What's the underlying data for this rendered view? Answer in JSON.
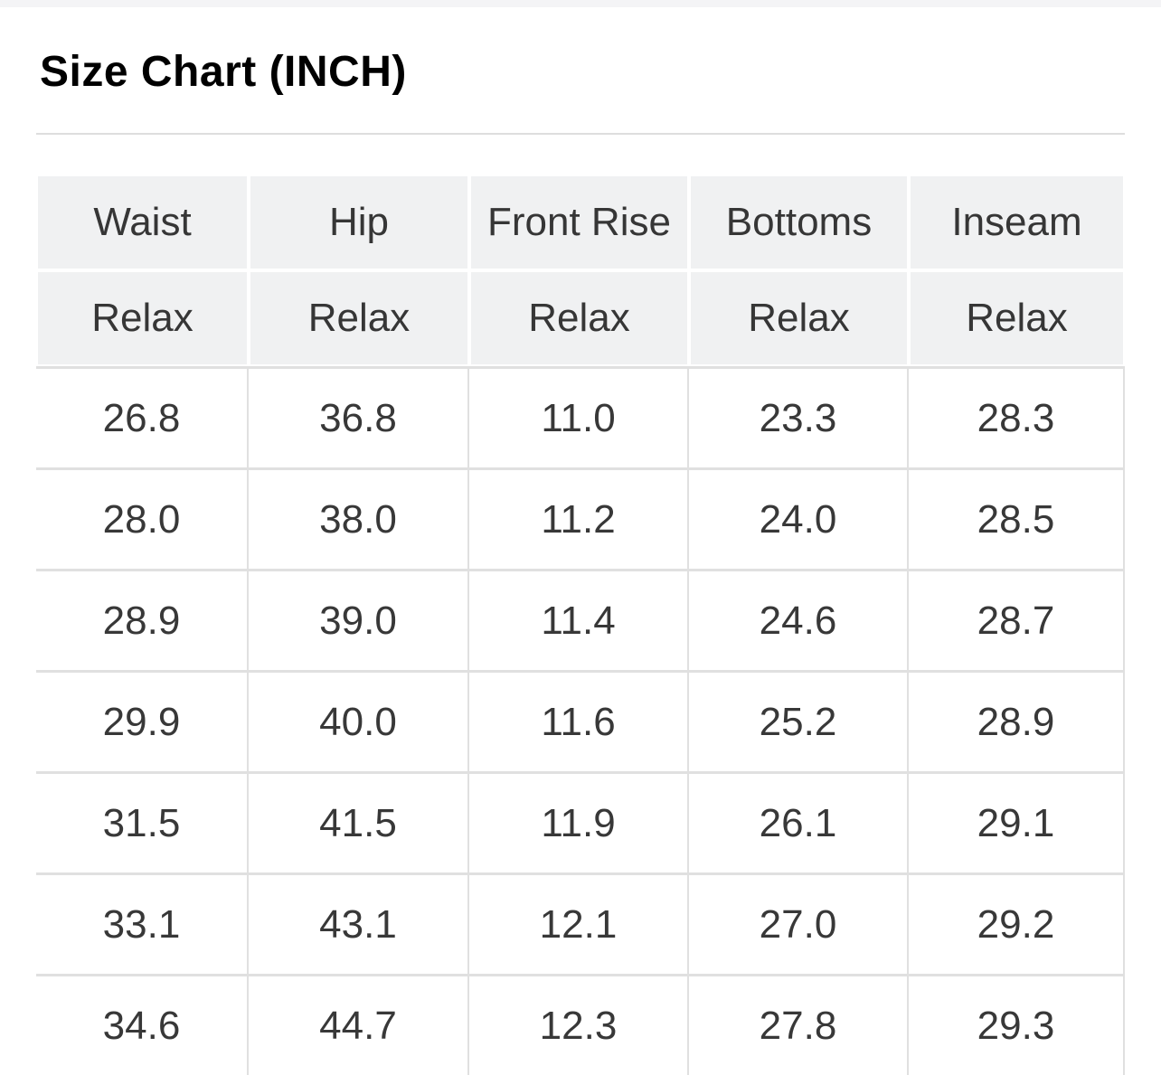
{
  "page": {
    "title": "Size Chart (INCH)"
  },
  "table": {
    "columns": [
      "Waist",
      "Hip",
      "Front Rise",
      "Bottoms",
      "Inseam"
    ],
    "fit_row": [
      "Relax",
      "Relax",
      "Relax",
      "Relax",
      "Relax"
    ],
    "rows": [
      [
        "26.8",
        "36.8",
        "11.0",
        "23.3",
        "28.3"
      ],
      [
        "28.0",
        "38.0",
        "11.2",
        "24.0",
        "28.5"
      ],
      [
        "28.9",
        "39.0",
        "11.4",
        "24.6",
        "28.7"
      ],
      [
        "29.9",
        "40.0",
        "11.6",
        "25.2",
        "28.9"
      ],
      [
        "31.5",
        "41.5",
        "11.9",
        "26.1",
        "29.1"
      ],
      [
        "33.1",
        "43.1",
        "12.1",
        "27.0",
        "29.2"
      ],
      [
        "34.6",
        "44.7",
        "12.3",
        "27.8",
        "29.3"
      ]
    ]
  },
  "colors": {
    "header_cell_bg": "#f0f1f2",
    "row_border": "#e0e0e0",
    "divider": "#dedede",
    "top_strip": "#f4f4f6",
    "header_text": "#363636",
    "cell_text": "#383838",
    "title_text": "#000000"
  }
}
